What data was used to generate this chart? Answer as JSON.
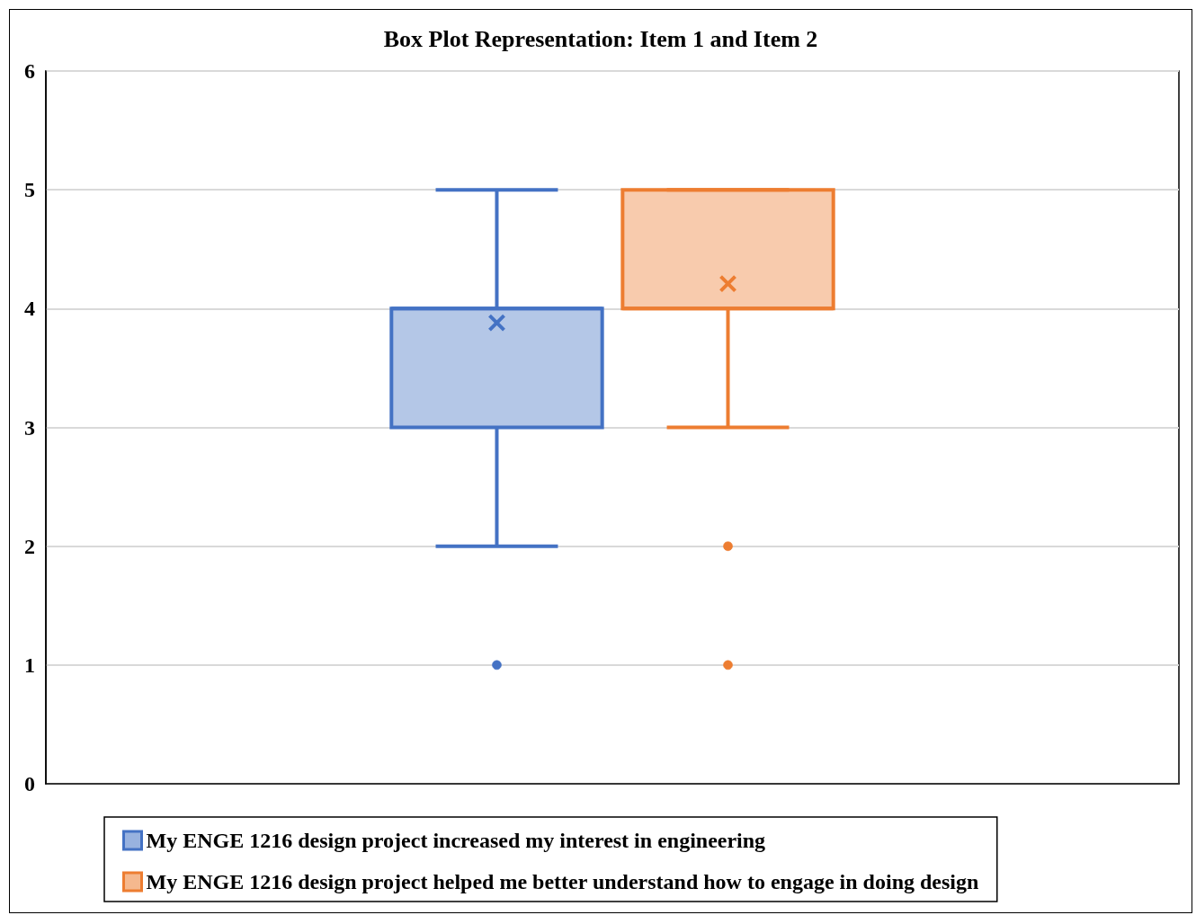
{
  "chart_data": {
    "type": "box",
    "title": "Box Plot Representation: Item 1 and Item 2",
    "categories": [
      null
    ],
    "series": [
      {
        "name": "My ENGE 1216 design project increased my interest in engineering",
        "color": "#4472c4",
        "boxes": [
          {
            "low": 2,
            "q1": 3,
            "median": 4,
            "q3": 4,
            "high": 5,
            "mean": 3.88,
            "outliers": [
              1
            ]
          }
        ]
      },
      {
        "name": "My ENGE 1216 design project helped me better understand how to engage in doing design",
        "color": "#ed7d31",
        "boxes": [
          {
            "low": 3,
            "q1": 4,
            "median": 4,
            "q3": 5,
            "high": 5,
            "mean": 4.21,
            "outliers": [
              2,
              1
            ]
          }
        ]
      }
    ],
    "ylim": [
      0,
      6
    ],
    "yticks": [
      0,
      1,
      2,
      3,
      4,
      5,
      6
    ],
    "grid": "y",
    "legend": "bottom",
    "tick_labels": "y"
  }
}
